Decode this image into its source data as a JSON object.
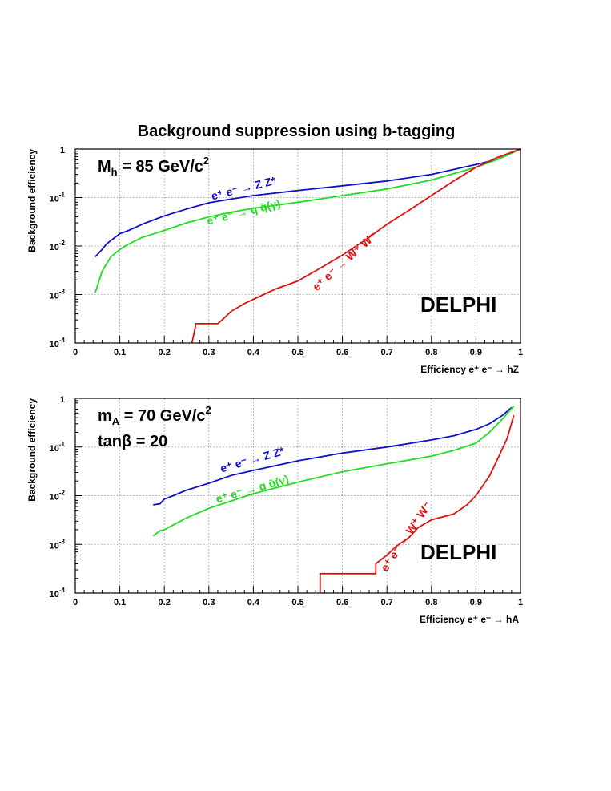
{
  "title": "Background suppression using b-tagging",
  "chart_data": [
    {
      "type": "line",
      "xlabel": "Efficiency e⁺ e⁻ → hZ",
      "ylabel": "Background efficiency",
      "xlim": [
        0,
        1
      ],
      "ylim": [
        0.0001,
        1
      ],
      "yscale": "log",
      "grid": true,
      "x_ticks": [
        "0",
        "0.1",
        "0.2",
        "0.3",
        "0.4",
        "0.5",
        "0.6",
        "0.7",
        "0.8",
        "0.9",
        "1"
      ],
      "y_ticks": [
        {
          "base": "10",
          "exp": "-4",
          "value": 0.0001
        },
        {
          "base": "10",
          "exp": "-3",
          "value": 0.001
        },
        {
          "base": "10",
          "exp": "-2",
          "value": 0.01
        },
        {
          "base": "10",
          "exp": "-1",
          "value": 0.1
        },
        {
          "base": "1",
          "exp": "",
          "value": 1
        }
      ],
      "annotations": [
        {
          "main": "M",
          "sub": "h",
          "rest": " = 85 GeV/c",
          "sup": "2"
        },
        {
          "text": "DELPHI"
        }
      ],
      "series": [
        {
          "name": "e⁺ e⁻ → Z Z*",
          "color": "#1010c8",
          "x": [
            0.045,
            0.06,
            0.07,
            0.08,
            0.1,
            0.12,
            0.15,
            0.2,
            0.25,
            0.3,
            0.35,
            0.4,
            0.5,
            0.6,
            0.7,
            0.8,
            0.9,
            0.95,
            1.0
          ],
          "y": [
            0.006,
            0.0085,
            0.011,
            0.013,
            0.018,
            0.021,
            0.028,
            0.042,
            0.058,
            0.078,
            0.093,
            0.11,
            0.14,
            0.175,
            0.22,
            0.3,
            0.48,
            0.62,
            1.0
          ]
        },
        {
          "name": "e⁺ e⁻ → q q̄(γ)",
          "color": "#20dd20",
          "x": [
            0.045,
            0.06,
            0.08,
            0.1,
            0.12,
            0.15,
            0.2,
            0.25,
            0.3,
            0.35,
            0.4,
            0.5,
            0.6,
            0.7,
            0.8,
            0.9,
            0.95,
            1.0
          ],
          "y": [
            0.0011,
            0.003,
            0.006,
            0.0085,
            0.011,
            0.015,
            0.021,
            0.03,
            0.04,
            0.05,
            0.06,
            0.08,
            0.11,
            0.15,
            0.23,
            0.42,
            0.62,
            1.0
          ]
        },
        {
          "name": "e⁺ e⁻ → W⁺ W⁻",
          "color": "#e01010",
          "x": [
            0.262,
            0.27,
            0.27,
            0.32,
            0.33,
            0.35,
            0.38,
            0.4,
            0.45,
            0.5,
            0.55,
            0.6,
            0.65,
            0.7,
            0.75,
            0.8,
            0.85,
            0.9,
            0.95,
            1.0
          ],
          "y": [
            0.0001,
            0.00022,
            0.00025,
            0.00025,
            0.0003,
            0.00045,
            0.00065,
            0.0008,
            0.0013,
            0.0019,
            0.0035,
            0.0065,
            0.013,
            0.028,
            0.055,
            0.11,
            0.22,
            0.42,
            0.68,
            1.0
          ]
        }
      ]
    },
    {
      "type": "line",
      "xlabel": "Efficiency e⁺ e⁻ → hA",
      "ylabel": "Background efficiency",
      "xlim": [
        0,
        1
      ],
      "ylim": [
        0.0001,
        1
      ],
      "yscale": "log",
      "grid": true,
      "x_ticks": [
        "0",
        "0.1",
        "0.2",
        "0.3",
        "0.4",
        "0.5",
        "0.6",
        "0.7",
        "0.8",
        "0.9",
        "1"
      ],
      "y_ticks": [
        {
          "base": "10",
          "exp": "-4",
          "value": 0.0001
        },
        {
          "base": "10",
          "exp": "-3",
          "value": 0.001
        },
        {
          "base": "10",
          "exp": "-2",
          "value": 0.01
        },
        {
          "base": "10",
          "exp": "-1",
          "value": 0.1
        },
        {
          "base": "1",
          "exp": "",
          "value": 1
        }
      ],
      "annotations": [
        {
          "main": "m",
          "sub": "A",
          "rest": " = 70 GeV/c",
          "sup": "2"
        },
        {
          "text": "tanβ = 20"
        },
        {
          "text": "DELPHI"
        }
      ],
      "series": [
        {
          "name": "e⁺ e⁻ → Z Z*",
          "color": "#1010c8",
          "x": [
            0.175,
            0.19,
            0.2,
            0.22,
            0.25,
            0.3,
            0.35,
            0.4,
            0.5,
            0.6,
            0.7,
            0.8,
            0.85,
            0.9,
            0.93,
            0.96,
            0.98
          ],
          "y": [
            0.0065,
            0.0068,
            0.0085,
            0.01,
            0.013,
            0.018,
            0.026,
            0.033,
            0.052,
            0.075,
            0.1,
            0.14,
            0.17,
            0.23,
            0.3,
            0.45,
            0.65
          ]
        },
        {
          "name": "e⁺ e⁻ → q q̄(γ)",
          "color": "#20dd20",
          "x": [
            0.175,
            0.19,
            0.2,
            0.22,
            0.25,
            0.3,
            0.35,
            0.4,
            0.5,
            0.6,
            0.7,
            0.8,
            0.85,
            0.9,
            0.93,
            0.96,
            0.985
          ],
          "y": [
            0.0015,
            0.0019,
            0.002,
            0.0025,
            0.0035,
            0.0055,
            0.0078,
            0.011,
            0.019,
            0.031,
            0.045,
            0.065,
            0.085,
            0.12,
            0.2,
            0.38,
            0.7
          ]
        },
        {
          "name": "e⁺ e⁻ → W⁺ W⁻",
          "color": "#e01010",
          "x": [
            0.55,
            0.55,
            0.675,
            0.675,
            0.7,
            0.72,
            0.75,
            0.77,
            0.8,
            0.85,
            0.88,
            0.9,
            0.93,
            0.95,
            0.97,
            0.985
          ],
          "y": [
            0.0001,
            0.00025,
            0.00025,
            0.0004,
            0.0006,
            0.0009,
            0.0014,
            0.0022,
            0.0032,
            0.0042,
            0.0065,
            0.01,
            0.025,
            0.06,
            0.15,
            0.45
          ]
        }
      ]
    }
  ]
}
